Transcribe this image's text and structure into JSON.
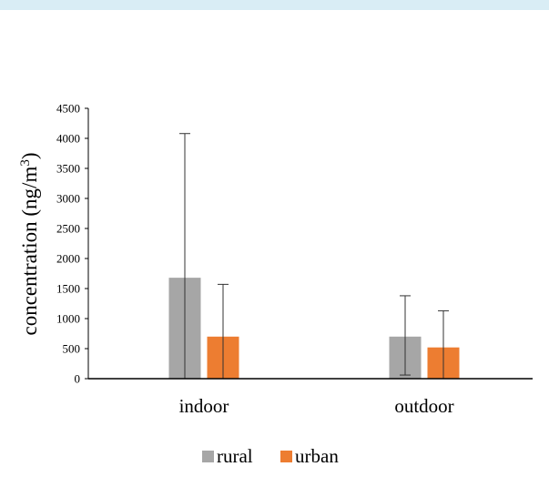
{
  "chart_data": {
    "type": "bar",
    "categories": [
      "indoor",
      "outdoor"
    ],
    "series": [
      {
        "name": "rural",
        "values": [
          1680,
          700
        ],
        "error_upper": [
          4080,
          1380
        ],
        "error_lower": [
          0,
          60
        ],
        "color": "#a6a6a6"
      },
      {
        "name": "urban",
        "values": [
          700,
          520
        ],
        "error_upper": [
          1570,
          1130
        ],
        "error_lower": [
          0,
          0
        ],
        "color": "#ed7d31"
      }
    ],
    "ylabel_main": "concentration  (ng/m",
    "ylabel_sup": "3",
    "ylabel_close": ")",
    "ylim": [
      0,
      4500
    ],
    "yticks": [
      0,
      500,
      1000,
      1500,
      2000,
      2500,
      3000,
      3500,
      4000,
      4500
    ],
    "legend_position": "bottom",
    "grid": false
  }
}
